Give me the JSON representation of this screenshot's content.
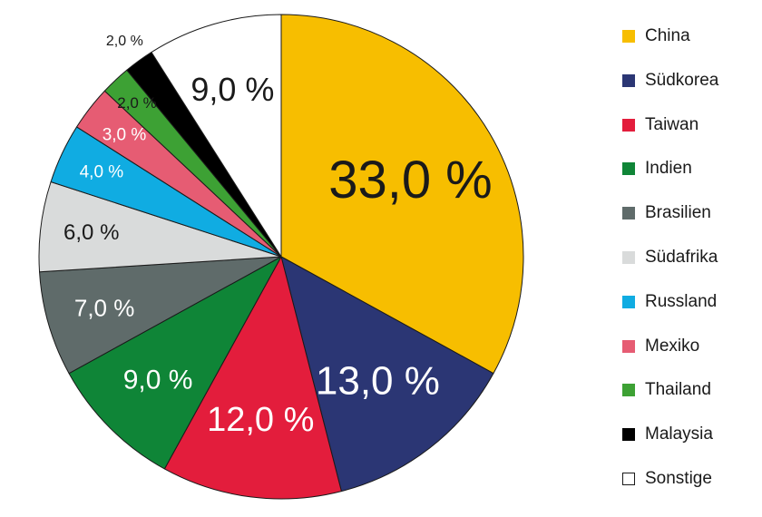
{
  "chart_data": {
    "type": "pie",
    "title": "",
    "categories": [
      "China",
      "Südkorea",
      "Taiwan",
      "Indien",
      "Brasilien",
      "Südafrika",
      "Russland",
      "Mexiko",
      "Thailand",
      "Malaysia",
      "Sonstige"
    ],
    "values": [
      33.0,
      13.0,
      12.0,
      9.0,
      7.0,
      6.0,
      4.0,
      3.0,
      2.0,
      2.0,
      9.0
    ],
    "value_labels": [
      "33,0 %",
      "13,0 %",
      "12,0 %",
      "9,0 %",
      "7,0 %",
      "6,0 %",
      "4,0 %",
      "3,0 %",
      "2,0 %",
      "2,0 %",
      "9,0 %"
    ],
    "colors": [
      "#F7BE00",
      "#2B3674",
      "#E31D3C",
      "#0F8537",
      "#5F6B6A",
      "#D9DBDB",
      "#10ACE2",
      "#E65C73",
      "#3DA134",
      "#000000",
      "#FFFFFF"
    ],
    "label_colors": [
      "#1a1a1a",
      "#ffffff",
      "#ffffff",
      "#ffffff",
      "#ffffff",
      "#1a1a1a",
      "#ffffff",
      "#ffffff",
      "#1a1a1a",
      "#1a1a1a",
      "#1a1a1a"
    ],
    "start_angle_deg": 0,
    "direction": "clockwise",
    "legend_position": "right"
  }
}
